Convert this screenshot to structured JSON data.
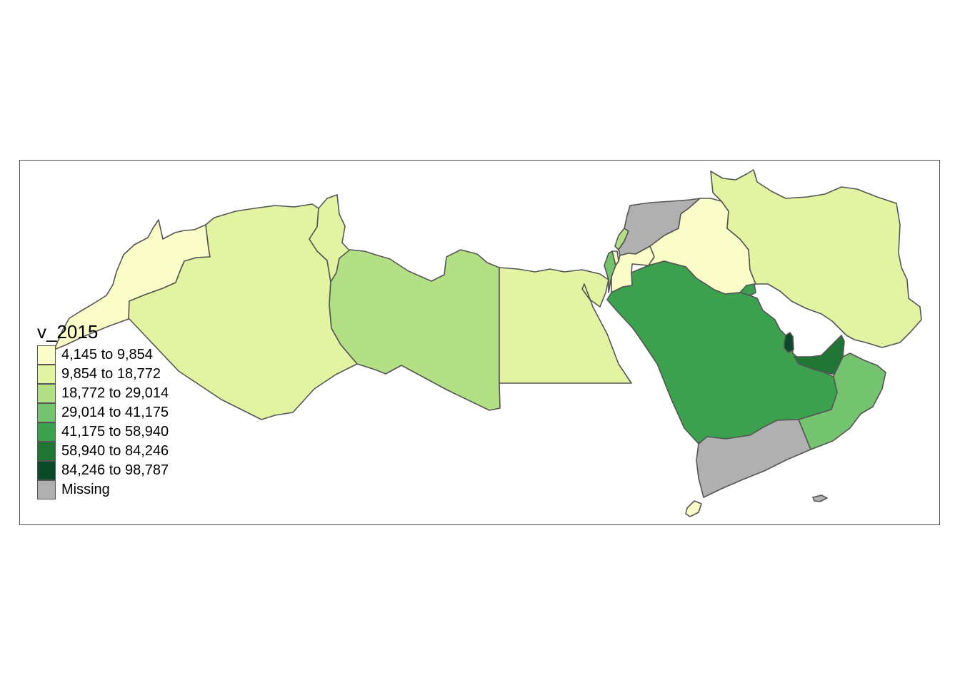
{
  "legend": {
    "title": "v_2015",
    "items": [
      {
        "label": "4,145 to 9,854",
        "color": "#fbfdc8"
      },
      {
        "label": "9,854 to 18,772",
        "color": "#e2f4a1"
      },
      {
        "label": "18,772 to 29,014",
        "color": "#b3e084"
      },
      {
        "label": "29,014 to 41,175",
        "color": "#73c36f"
      },
      {
        "label": "41,175 to 58,940",
        "color": "#3ba14e"
      },
      {
        "label": "58,940 to 84,246",
        "color": "#1f7634"
      },
      {
        "label": "84,246 to 98,787",
        "color": "#0a4a26"
      },
      {
        "label": "Missing",
        "color": "#b0b0b0"
      }
    ]
  },
  "map": {
    "stroke_color": "#555555",
    "countries": [
      {
        "name": "Morocco",
        "class": 0
      },
      {
        "name": "Algeria",
        "class": 1
      },
      {
        "name": "Tunisia",
        "class": 1
      },
      {
        "name": "Libya",
        "class": 2
      },
      {
        "name": "Egypt",
        "class": 1
      },
      {
        "name": "Israel",
        "class": 3
      },
      {
        "name": "Palestine",
        "class": 0
      },
      {
        "name": "Lebanon",
        "class": 2
      },
      {
        "name": "Syria",
        "class": 7
      },
      {
        "name": "Jordan",
        "class": 0
      },
      {
        "name": "Iraq",
        "class": 0
      },
      {
        "name": "Iran",
        "class": 1
      },
      {
        "name": "Kuwait",
        "class": 4
      },
      {
        "name": "Saudi Arabia",
        "class": 4
      },
      {
        "name": "Qatar",
        "class": 6
      },
      {
        "name": "United Arab Emirates",
        "class": 5
      },
      {
        "name": "Oman",
        "class": 3
      },
      {
        "name": "Yemen",
        "class": 7
      },
      {
        "name": "Socotra",
        "class": 7
      },
      {
        "name": "Djibouti",
        "class": 0
      }
    ]
  }
}
